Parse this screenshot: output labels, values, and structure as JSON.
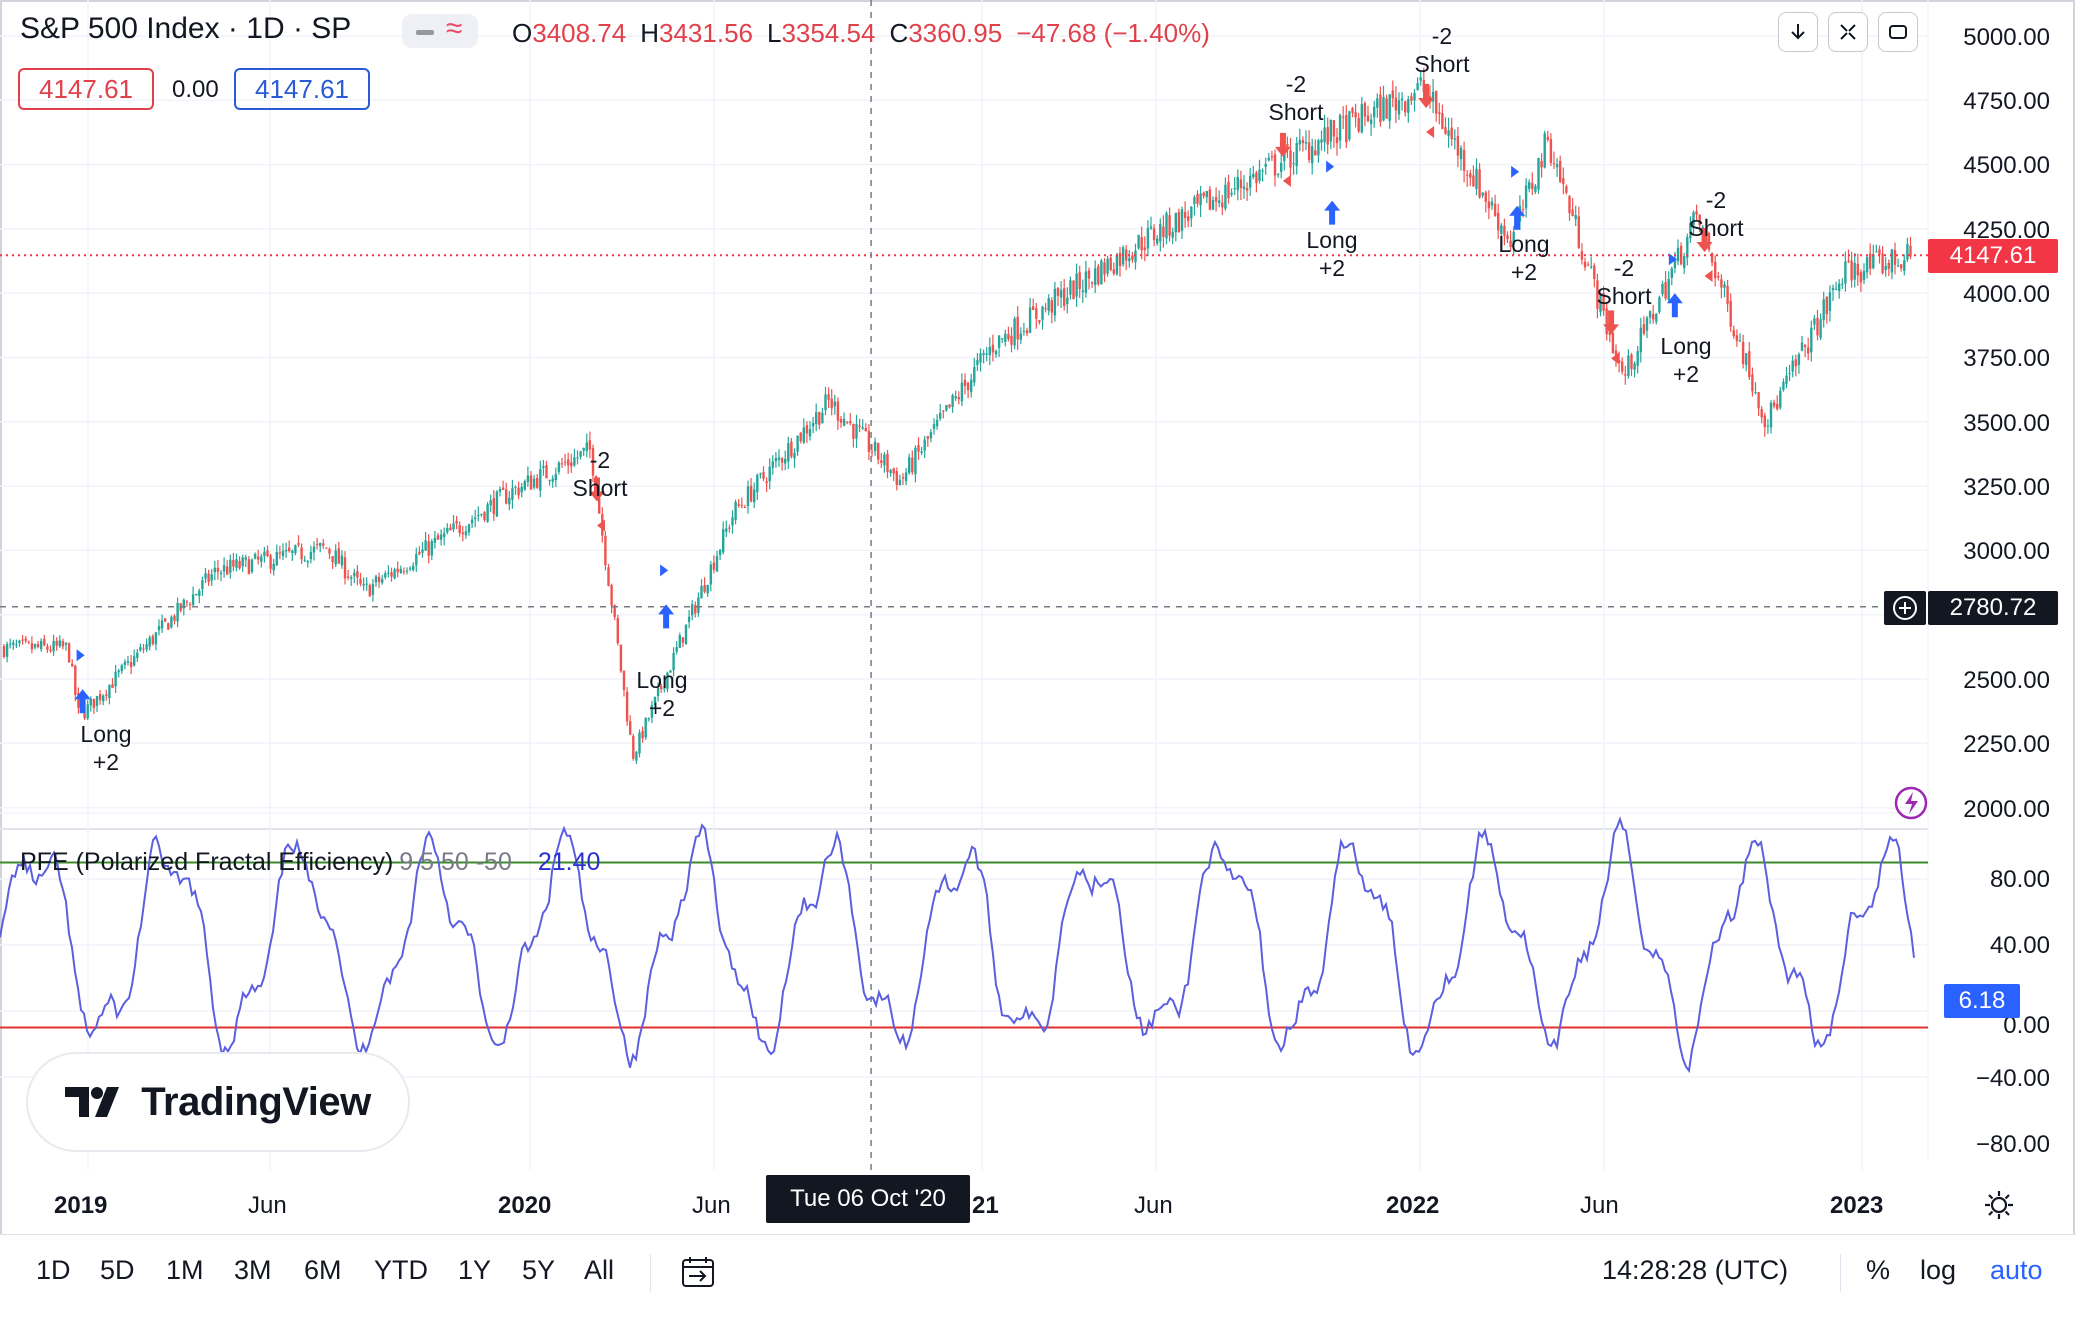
{
  "header": {
    "title": "S&P 500 Index · 1D · SP",
    "ohlc": [
      {
        "k": "O",
        "v": "3408.74"
      },
      {
        "k": "H",
        "v": "3431.56"
      },
      {
        "k": "L",
        "v": "3354.54"
      },
      {
        "k": "C",
        "v": "3360.95"
      }
    ],
    "change": "−47.68 (−1.40%)",
    "bid": "4147.61",
    "spread": "0.00",
    "ask": "4147.61"
  },
  "price_axis": {
    "labels": [
      "5000.00",
      "4750.00",
      "4500.00",
      "4250.00",
      "4000.00",
      "3750.00",
      "3500.00",
      "3250.00",
      "3000.00",
      "2500.00",
      "2250.00",
      "2000.00"
    ],
    "last_price_tag": "4147.61",
    "crosshair_price_tag": "2780.72"
  },
  "indicator": {
    "name": "PFE (Polarized Fractal Efficiency)",
    "params": "9 5 50 -50",
    "value": "21.40",
    "axis_labels": [
      "80.00",
      "40.00",
      "−40.00",
      "−80.00"
    ],
    "value_tag": "6.18",
    "hidden_label": "0.00"
  },
  "time_axis": {
    "labels": [
      {
        "text": "2019",
        "bold": true
      },
      {
        "text": "Jun",
        "bold": false
      },
      {
        "text": "2020",
        "bold": true
      },
      {
        "text": "Jun",
        "bold": false
      },
      {
        "text": "21",
        "bold": true
      },
      {
        "text": "Jun",
        "bold": false
      },
      {
        "text": "2022",
        "bold": true
      },
      {
        "text": "Jun",
        "bold": false
      },
      {
        "text": "2023",
        "bold": true
      }
    ],
    "crosshair_date": "Tue 06 Oct '20"
  },
  "signals": [
    {
      "l1": "Long",
      "l2": "+2"
    },
    {
      "l1": "-2",
      "l2": "Short"
    },
    {
      "l1": "Long",
      "l2": "+2"
    },
    {
      "l1": "-2",
      "l2": "Short"
    },
    {
      "l1": "Long",
      "l2": "+2"
    },
    {
      "l1": "-2",
      "l2": "Short"
    },
    {
      "l1": "Long",
      "l2": "+2"
    },
    {
      "l1": "-2",
      "l2": "Short"
    },
    {
      "l1": "Long",
      "l2": "+2"
    },
    {
      "l1": "-2",
      "l2": "Short"
    }
  ],
  "toolbar": {
    "ranges": [
      "1D",
      "5D",
      "1M",
      "3M",
      "6M",
      "YTD",
      "1Y",
      "5Y",
      "All"
    ],
    "clock": "14:28:28 (UTC)",
    "percent": "%",
    "log": "log",
    "auto": "auto"
  },
  "brand": {
    "name": "TradingView"
  },
  "colors": {
    "up": "#26a69a",
    "down": "#ef5350",
    "pfe_line": "#5b5fe0",
    "upper_level": "#3a8a2a",
    "lower_level": "#e03030",
    "accent_blue": "#2962ff",
    "price_tag": "#f23645"
  },
  "icons": [
    "download-icon",
    "collapse-icon",
    "fullscreen-icon",
    "date-range-icon",
    "settings-icon",
    "lightning-icon",
    "crosshair-plus-icon"
  ],
  "chart_data": {
    "type": "candlestick",
    "symbol": "S&P 500 Index",
    "interval": "1D",
    "y_range_price": [
      2000,
      5000
    ],
    "approx_path": [
      {
        "x": "2018-12",
        "y": 2620
      },
      {
        "x": "2018-12-24",
        "y": 2350
      },
      {
        "x": "2019-04",
        "y": 2920
      },
      {
        "x": "2019-07",
        "y": 3010
      },
      {
        "x": "2019-08",
        "y": 2840
      },
      {
        "x": "2019-12",
        "y": 3230
      },
      {
        "x": "2020-02-19",
        "y": 3390
      },
      {
        "x": "2020-03-23",
        "y": 2200
      },
      {
        "x": "2020-06",
        "y": 3150
      },
      {
        "x": "2020-09-02",
        "y": 3580
      },
      {
        "x": "2020-10-30",
        "y": 3270
      },
      {
        "x": "2021-01",
        "y": 3800
      },
      {
        "x": "2021-05",
        "y": 4200
      },
      {
        "x": "2021-09",
        "y": 4530
      },
      {
        "x": "2022-01-03",
        "y": 4800
      },
      {
        "x": "2022-03",
        "y": 4200
      },
      {
        "x": "2022-04",
        "y": 4600
      },
      {
        "x": "2022-06-16",
        "y": 3670
      },
      {
        "x": "2022-08-16",
        "y": 4300
      },
      {
        "x": "2022-10-12",
        "y": 3500
      },
      {
        "x": "2022-12",
        "y": 4080
      },
      {
        "x": "2023-02",
        "y": 4147.61
      }
    ],
    "indicator": {
      "name": "PFE (Polarized Fractal Efficiency)",
      "levels": [
        50,
        -50
      ],
      "y_range": [
        -90,
        90
      ],
      "last": 21.4
    }
  }
}
